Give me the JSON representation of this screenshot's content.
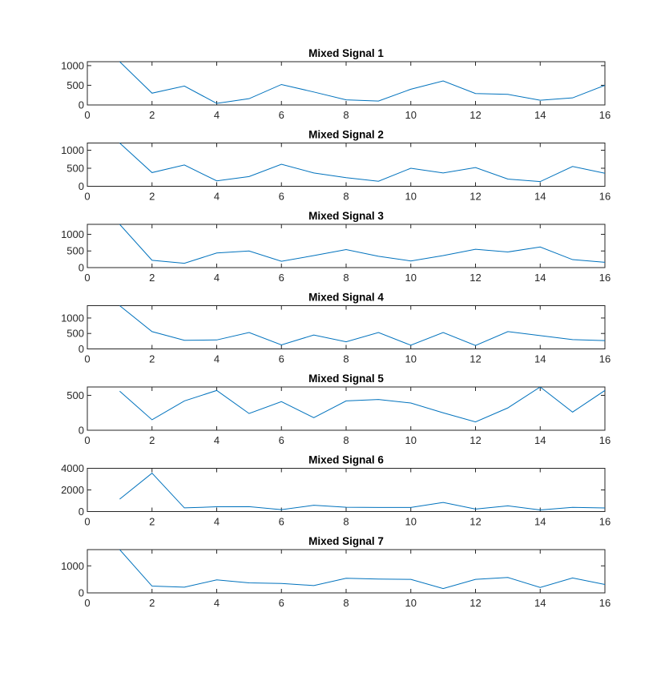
{
  "chart_data": [
    {
      "type": "line",
      "title": "Mixed Signal 1",
      "xlabel": "",
      "ylabel": "",
      "xlim": [
        0,
        16
      ],
      "ylim": [
        0,
        1100
      ],
      "xticks": [
        "0",
        "2",
        "4",
        "6",
        "8",
        "10",
        "12",
        "14",
        "16"
      ],
      "yticks": [
        0,
        500,
        1000
      ],
      "ytick_labels": [
        "0",
        "500",
        "1000"
      ],
      "grid": false,
      "color": "#0072BD",
      "series": [
        {
          "x": [
            1,
            2,
            3,
            4,
            5,
            6,
            7,
            8,
            9,
            10,
            11,
            12,
            13,
            14,
            15,
            16
          ],
          "values": [
            1100,
            300,
            480,
            40,
            160,
            520,
            330,
            130,
            100,
            400,
            610,
            290,
            270,
            120,
            180,
            500
          ]
        }
      ]
    },
    {
      "type": "line",
      "title": "Mixed Signal 2",
      "xlabel": "",
      "ylabel": "",
      "xlim": [
        0,
        16
      ],
      "ylim": [
        0,
        1200
      ],
      "xticks": [
        "0",
        "2",
        "4",
        "6",
        "8",
        "10",
        "12",
        "14",
        "16"
      ],
      "yticks": [
        0,
        500,
        1000
      ],
      "ytick_labels": [
        "0",
        "500",
        "1000"
      ],
      "grid": false,
      "color": "#0072BD",
      "series": [
        {
          "x": [
            1,
            2,
            3,
            4,
            5,
            6,
            7,
            8,
            9,
            10,
            11,
            12,
            13,
            14,
            15,
            16
          ],
          "values": [
            1200,
            380,
            590,
            150,
            270,
            610,
            370,
            240,
            140,
            500,
            370,
            520,
            200,
            130,
            550,
            360
          ]
        }
      ]
    },
    {
      "type": "line",
      "title": "Mixed Signal 3",
      "xlabel": "",
      "ylabel": "",
      "xlim": [
        0,
        16
      ],
      "ylim": [
        0,
        1300
      ],
      "xticks": [
        "0",
        "2",
        "4",
        "6",
        "8",
        "10",
        "12",
        "14",
        "16"
      ],
      "yticks": [
        0,
        500,
        1000
      ],
      "ytick_labels": [
        "0",
        "500",
        "1000"
      ],
      "grid": false,
      "color": "#0072BD",
      "series": [
        {
          "x": [
            1,
            2,
            3,
            4,
            5,
            6,
            7,
            8,
            9,
            10,
            11,
            12,
            13,
            14,
            15,
            16
          ],
          "values": [
            1300,
            220,
            130,
            440,
            500,
            190,
            360,
            540,
            340,
            200,
            360,
            550,
            470,
            620,
            240,
            160
          ]
        }
      ]
    },
    {
      "type": "line",
      "title": "Mixed Signal 4",
      "xlabel": "",
      "ylabel": "",
      "xlim": [
        0,
        16
      ],
      "ylim": [
        0,
        1400
      ],
      "xticks": [
        "0",
        "2",
        "4",
        "6",
        "8",
        "10",
        "12",
        "14",
        "16"
      ],
      "yticks": [
        0,
        500,
        1000
      ],
      "ytick_labels": [
        "0",
        "500",
        "1000"
      ],
      "grid": false,
      "color": "#0072BD",
      "series": [
        {
          "x": [
            1,
            2,
            3,
            4,
            5,
            6,
            7,
            8,
            9,
            10,
            11,
            12,
            13,
            14,
            15,
            16
          ],
          "values": [
            1400,
            560,
            280,
            290,
            530,
            130,
            450,
            230,
            530,
            120,
            530,
            110,
            560,
            430,
            300,
            270
          ]
        }
      ]
    },
    {
      "type": "line",
      "title": "Mixed Signal 5",
      "xlabel": "",
      "ylabel": "",
      "xlim": [
        0,
        16
      ],
      "ylim": [
        0,
        620
      ],
      "xticks": [
        "0",
        "2",
        "4",
        "6",
        "8",
        "10",
        "12",
        "14",
        "16"
      ],
      "yticks": [
        0,
        500
      ],
      "ytick_labels": [
        "0",
        "500"
      ],
      "grid": false,
      "color": "#0072BD",
      "series": [
        {
          "x": [
            1,
            2,
            3,
            4,
            5,
            6,
            7,
            8,
            9,
            10,
            11,
            12,
            13,
            14,
            15,
            16
          ],
          "values": [
            560,
            150,
            420,
            570,
            240,
            410,
            180,
            420,
            440,
            390,
            250,
            120,
            320,
            620,
            260,
            570
          ]
        }
      ]
    },
    {
      "type": "line",
      "title": "Mixed Signal 6",
      "xlabel": "",
      "ylabel": "",
      "xlim": [
        0,
        16
      ],
      "ylim": [
        0,
        4000
      ],
      "xticks": [
        "0",
        "2",
        "4",
        "6",
        "8",
        "10",
        "12",
        "14",
        "16"
      ],
      "yticks": [
        0,
        2000,
        4000
      ],
      "ytick_labels": [
        "0",
        "2000",
        "4000"
      ],
      "grid": false,
      "color": "#0072BD",
      "series": [
        {
          "x": [
            1,
            2,
            3,
            4,
            5,
            6,
            7,
            8,
            9,
            10,
            11,
            12,
            13,
            14,
            15,
            16
          ],
          "values": [
            1150,
            3550,
            340,
            440,
            450,
            180,
            580,
            400,
            380,
            380,
            840,
            230,
            530,
            150,
            390,
            330
          ]
        }
      ]
    },
    {
      "type": "line",
      "title": "Mixed Signal 7",
      "xlabel": "",
      "ylabel": "",
      "xlim": [
        0,
        16
      ],
      "ylim": [
        0,
        1600
      ],
      "xticks": [
        "0",
        "2",
        "4",
        "6",
        "8",
        "10",
        "12",
        "14",
        "16"
      ],
      "yticks": [
        0,
        1000
      ],
      "ytick_labels": [
        "0",
        "1000"
      ],
      "grid": false,
      "color": "#0072BD",
      "series": [
        {
          "x": [
            1,
            2,
            3,
            4,
            5,
            6,
            7,
            8,
            9,
            10,
            11,
            12,
            13,
            14,
            15,
            16
          ],
          "values": [
            1600,
            250,
            210,
            480,
            370,
            350,
            270,
            540,
            510,
            500,
            160,
            500,
            570,
            200,
            550,
            310
          ]
        }
      ]
    }
  ]
}
